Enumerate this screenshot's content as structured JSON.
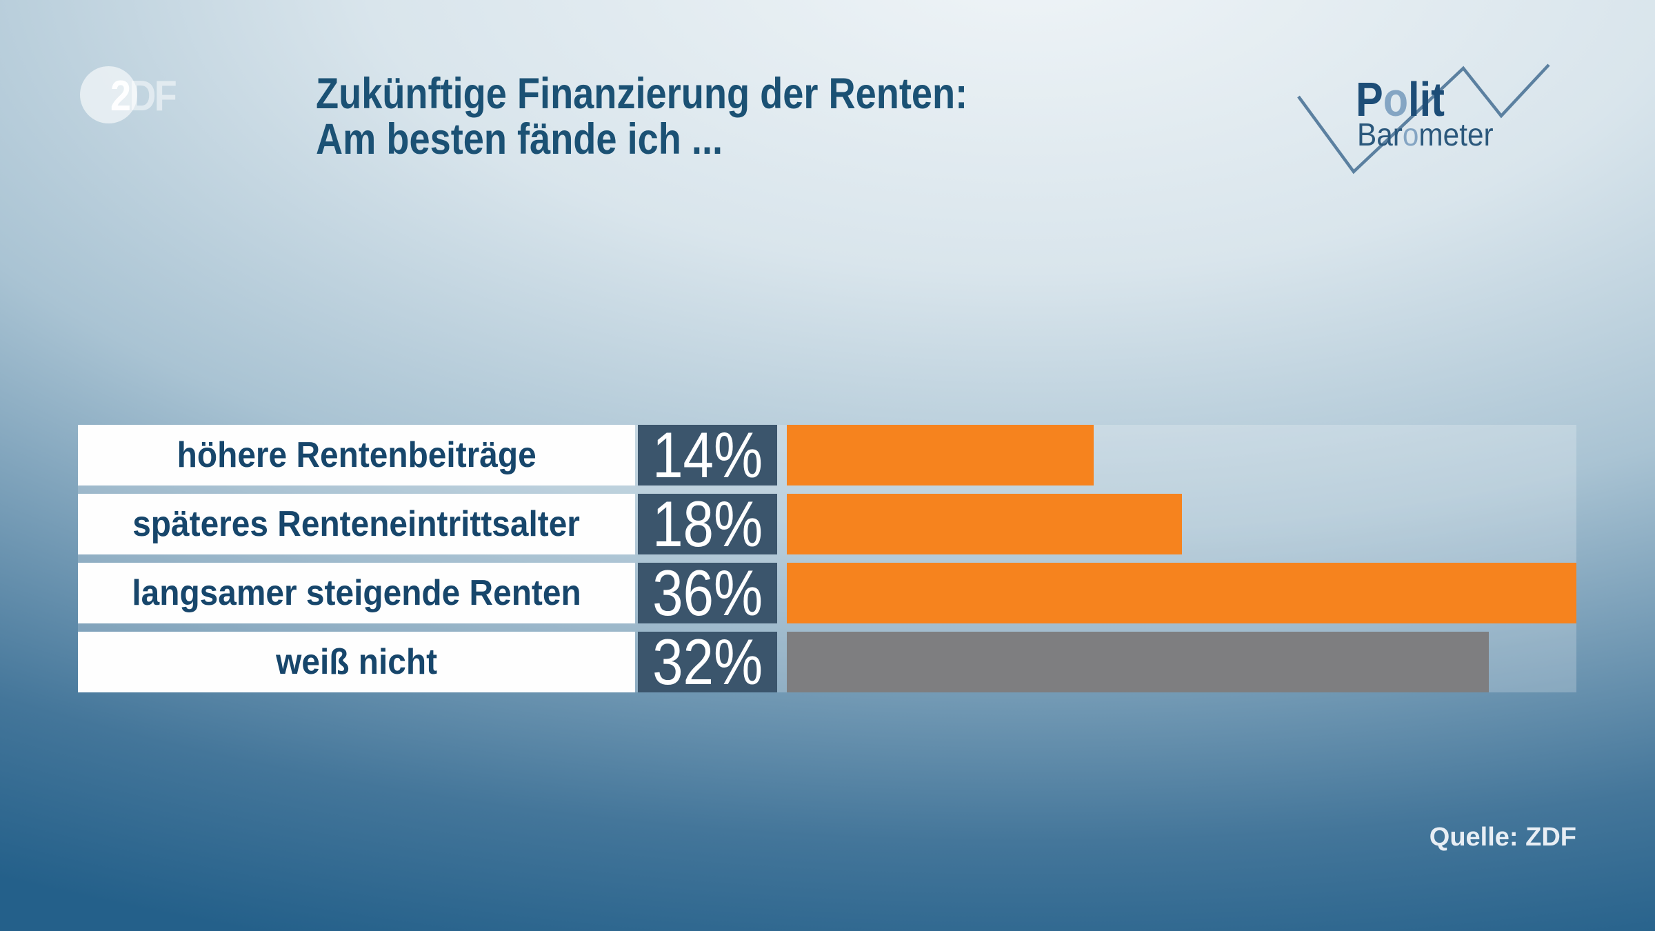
{
  "header": {
    "zdf_logo": {
      "char_2": "2",
      "chars_df": "DF"
    },
    "title": {
      "line1": "Zukünftige Finanzierung der Renten:",
      "line2": "Am besten fände ich ..."
    },
    "politbarometer": {
      "polit_pre": "P",
      "polit_o": "o",
      "polit_post": "lit",
      "baro_pre": "Bar",
      "baro_o": "o",
      "baro_post": "meter"
    }
  },
  "chart_data": {
    "type": "bar",
    "orientation": "horizontal",
    "title": "Zukünftige Finanzierung der Renten: Am besten fände ich ...",
    "categories": [
      "höhere Rentenbeiträge",
      "späteres Renteneintrittsalter",
      "langsamer steigende Renten",
      "weiß nicht"
    ],
    "values": [
      14,
      18,
      36,
      32
    ],
    "value_labels": [
      "14%",
      "18%",
      "36%",
      "32%"
    ],
    "bar_colors": [
      "#F6831E",
      "#F6831E",
      "#F6831E",
      "#7E7E80"
    ],
    "xlim": [
      0,
      36
    ],
    "grid": false,
    "legend": false,
    "source": "Quelle: ZDF"
  },
  "colors": {
    "accent_orange": "#F6831E",
    "neutral_gray": "#7E7E80",
    "value_box_navy": "#3B556C",
    "title_text": "#1B5174",
    "label_text": "#17466B",
    "zigzag_line": "#5B80A0"
  }
}
